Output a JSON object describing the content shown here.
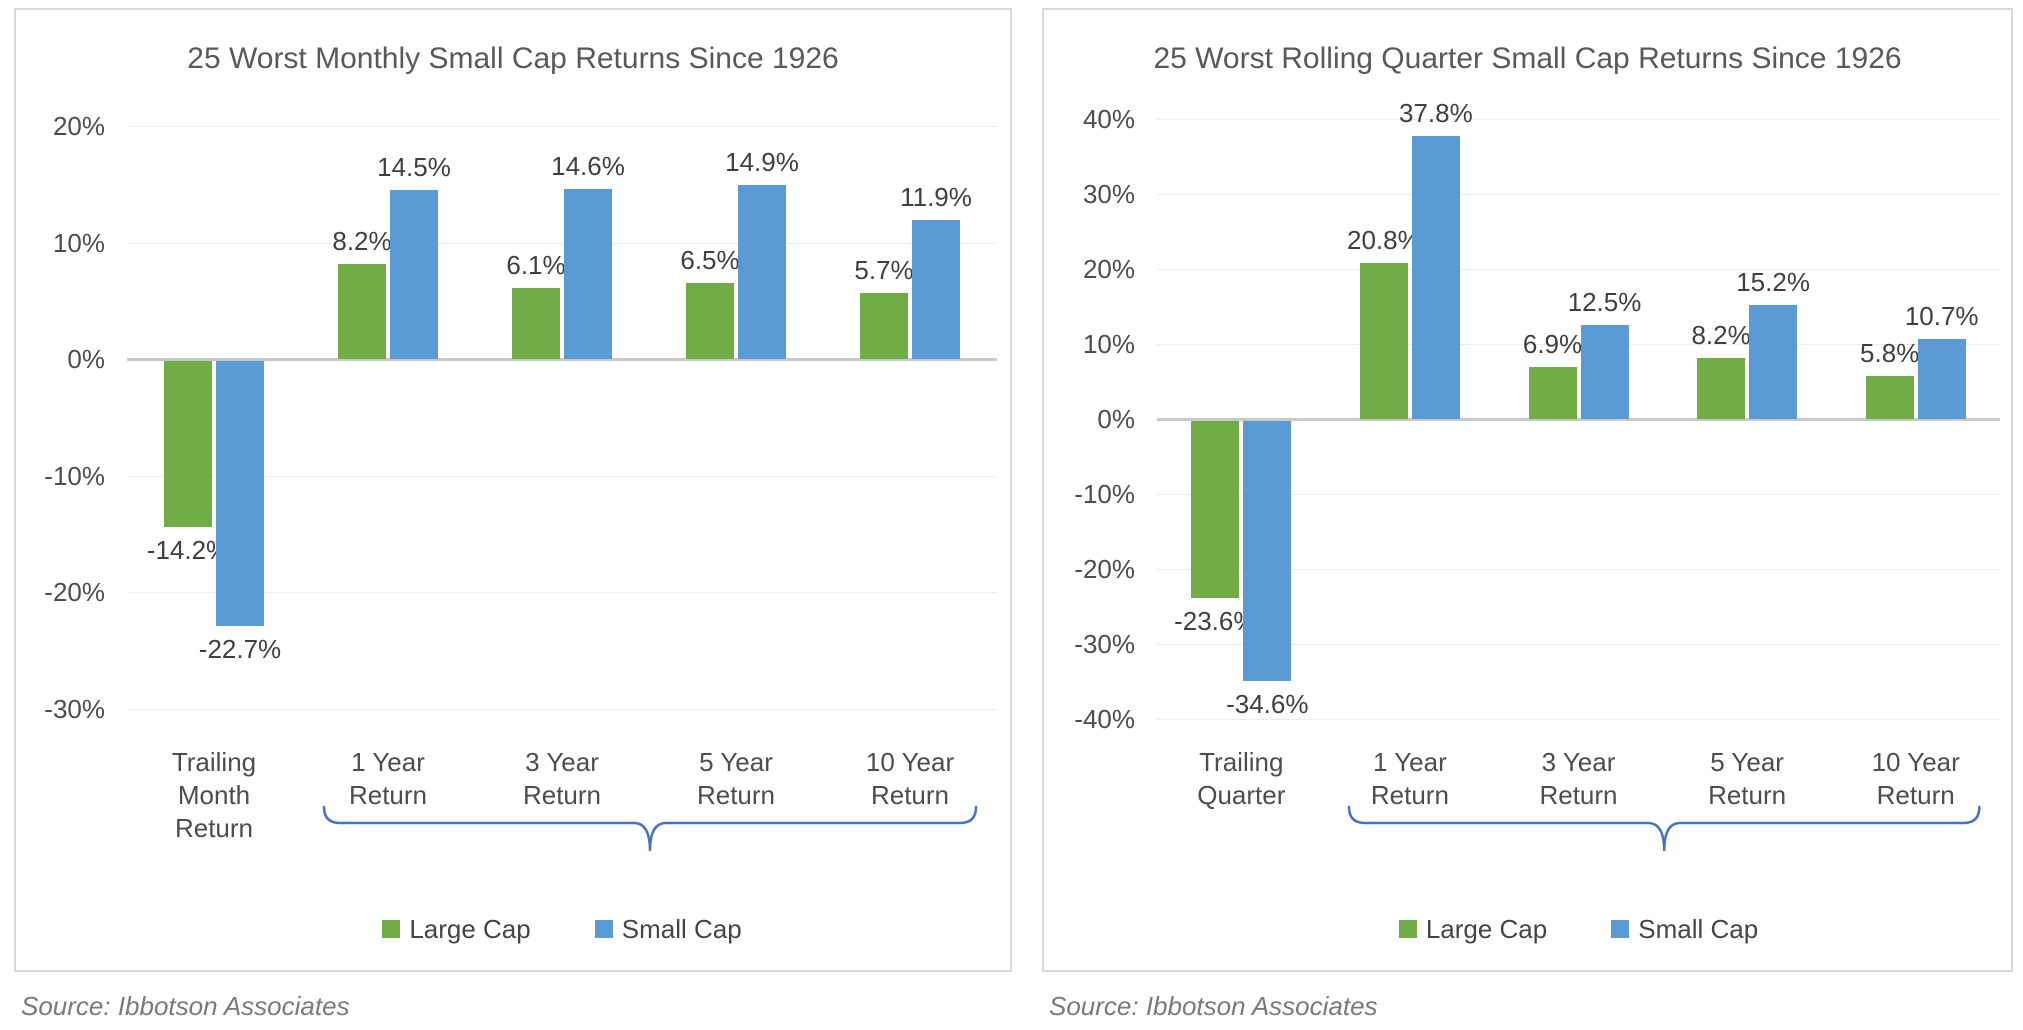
{
  "styles": {
    "background": "#FFFFFF",
    "panel_border_color": "#D8D8D8",
    "grid_color": "#ECECEC",
    "zero_line_color": "#C9C9C9",
    "title_color": "#595959",
    "tick_label_color": "#4D4D4D",
    "data_label_color": "#3F3F3F",
    "source_color": "#7A7A7A",
    "brace_color": "#4472C4",
    "large_cap_color": "#70AD47",
    "small_cap_color": "#5B9BD5"
  },
  "chart_data": [
    {
      "type": "bar",
      "title": "25 Worst Monthly Small Cap Returns Since 1926",
      "categories": [
        "Trailing Month Return",
        "1 Year Return",
        "3 Year Return",
        "5 Year Return",
        "10 Year Return"
      ],
      "category_lines": [
        [
          "Trailing",
          "Month",
          "Return"
        ],
        [
          "1 Year",
          "Return"
        ],
        [
          "3 Year",
          "Return"
        ],
        [
          "5 Year",
          "Return"
        ],
        [
          "10 Year",
          "Return"
        ]
      ],
      "series": [
        {
          "name": "Large Cap",
          "color": "#70AD47",
          "values": [
            -14.2,
            8.2,
            6.1,
            6.5,
            5.7
          ]
        },
        {
          "name": "Small Cap",
          "color": "#5B9BD5",
          "values": [
            -22.7,
            14.5,
            14.6,
            14.9,
            11.9
          ]
        }
      ],
      "data_labels": [
        [
          "-14.2%",
          "8.2%",
          "6.1%",
          "6.5%",
          "5.7%"
        ],
        [
          "-22.7%",
          "14.5%",
          "14.6%",
          "14.9%",
          "11.9%"
        ]
      ],
      "xlabel": "",
      "ylabel": "",
      "ylim": [
        -30,
        20
      ],
      "ytick_step": 10,
      "yticks": [
        "20%",
        "10%",
        "0%",
        "-10%",
        "-20%",
        "-30%"
      ],
      "grid": true,
      "legend_position": "bottom",
      "brace_annotation": {
        "from_category_index": 1,
        "to_category_index": 4,
        "spans": [
          "1 Year Return",
          "10 Year Return"
        ],
        "color": "#4472C4"
      },
      "source": "Source: Ibbotson Associates"
    },
    {
      "type": "bar",
      "title": "25 Worst Rolling Quarter Small Cap Returns Since 1926",
      "categories": [
        "Trailing Quarter",
        "1 Year Return",
        "3 Year Return",
        "5 Year Return",
        "10 Year Return"
      ],
      "category_lines": [
        [
          "Trailing",
          "Quarter"
        ],
        [
          "1 Year",
          "Return"
        ],
        [
          "3 Year",
          "Return"
        ],
        [
          "5 Year",
          "Return"
        ],
        [
          "10 Year",
          "Return"
        ]
      ],
      "series": [
        {
          "name": "Large Cap",
          "color": "#70AD47",
          "values": [
            -23.6,
            20.8,
            6.9,
            8.2,
            5.8
          ]
        },
        {
          "name": "Small Cap",
          "color": "#5B9BD5",
          "values": [
            -34.6,
            37.8,
            12.5,
            15.2,
            10.7
          ]
        }
      ],
      "data_labels": [
        [
          "-23.6%",
          "20.8%",
          "6.9%",
          "8.2%",
          "5.8%"
        ],
        [
          "-34.6%",
          "37.8%",
          "12.5%",
          "15.2%",
          "10.7%"
        ]
      ],
      "xlabel": "",
      "ylabel": "",
      "ylim": [
        -40,
        40
      ],
      "ytick_step": 10,
      "yticks": [
        "40%",
        "30%",
        "20%",
        "10%",
        "0%",
        "-10%",
        "-20%",
        "-30%",
        "-40%"
      ],
      "grid": true,
      "legend_position": "bottom",
      "brace_annotation": {
        "from_category_index": 1,
        "to_category_index": 4,
        "spans": [
          "1 Year Return",
          "10 Year Return"
        ],
        "color": "#4472C4"
      },
      "source": "Source: Ibbotson Associates"
    }
  ]
}
